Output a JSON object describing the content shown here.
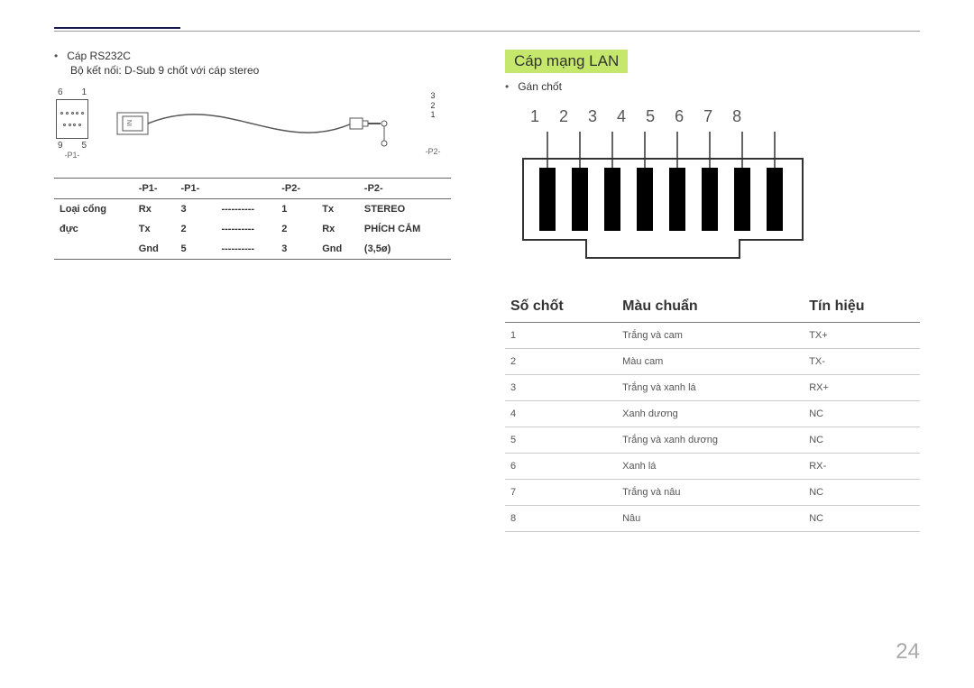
{
  "left": {
    "bullet": "Cáp RS232C",
    "sub": "Bộ kết nối: D-Sub 9 chốt với cáp stereo",
    "dsub": {
      "tl": "6",
      "tr": "1",
      "bl": "9",
      "br": "5",
      "label": "-P1-"
    },
    "stereo": {
      "l1": "3",
      "l2": "2",
      "l3": "1",
      "label": "-P2-"
    },
    "table": {
      "headers": [
        "-P1-",
        "",
        "-P1-",
        "",
        "-P2-",
        "",
        "-P2-"
      ],
      "side_header": [
        "Loại cổng",
        "đực"
      ],
      "rows": [
        [
          "Rx",
          "3",
          "----------",
          "1",
          "Tx",
          "STEREO"
        ],
        [
          "Tx",
          "2",
          "----------",
          "2",
          "Rx",
          "PHÍCH CẮM"
        ],
        [
          "Gnd",
          "5",
          "----------",
          "3",
          "Gnd",
          "(3,5ø)"
        ]
      ]
    }
  },
  "right": {
    "title": "Cáp mạng LAN",
    "bullet": "Gán chốt",
    "rj45_nums": [
      "1",
      "2",
      "3",
      "4",
      "5",
      "6",
      "7",
      "8"
    ],
    "table": {
      "headers": [
        "Số chốt",
        "Màu chuẩn",
        "Tín hiệu"
      ],
      "rows": [
        [
          "1",
          "Trắng và cam",
          "TX+"
        ],
        [
          "2",
          "Màu cam",
          "TX-"
        ],
        [
          "3",
          "Trắng và xanh lá",
          "RX+"
        ],
        [
          "4",
          "Xanh dương",
          "NC"
        ],
        [
          "5",
          "Trắng và xanh dương",
          "NC"
        ],
        [
          "6",
          "Xanh lá",
          "RX-"
        ],
        [
          "7",
          "Trắng và nâu",
          "NC"
        ],
        [
          "8",
          "Nâu",
          "NC"
        ]
      ]
    }
  },
  "page_number": "24"
}
